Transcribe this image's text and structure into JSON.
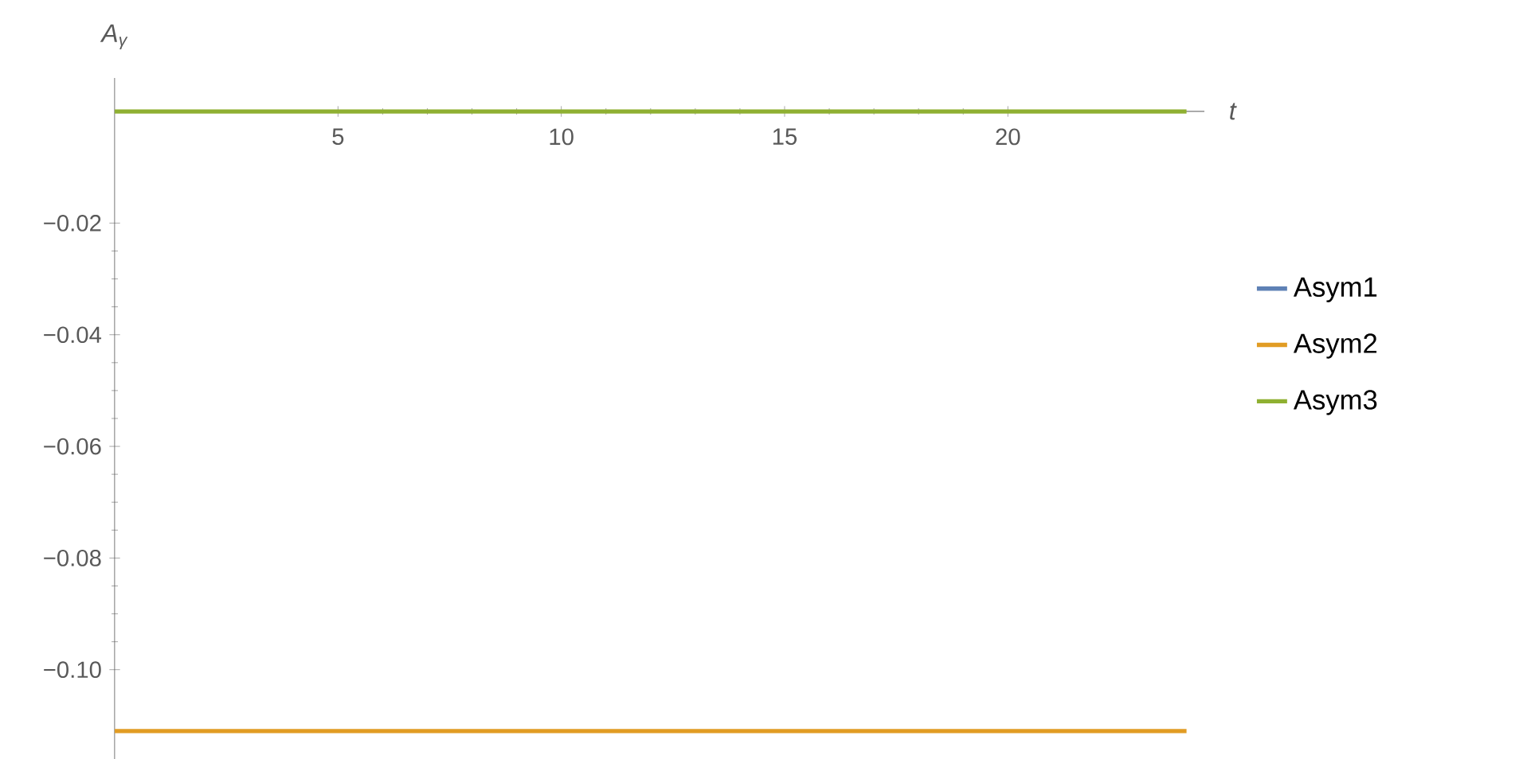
{
  "chart_data": {
    "type": "line",
    "xlabel": "t",
    "ylabel": "A$_{γ}$",
    "x": [
      0,
      24
    ],
    "series": [
      {
        "name": "Asym1",
        "color": "#5e81b5",
        "values": [
          null,
          null
        ]
      },
      {
        "name": "Asym2",
        "color": "#e19c24",
        "values": [
          -0.111,
          -0.111
        ]
      },
      {
        "name": "Asym3",
        "color": "#8fb032",
        "values": [
          0,
          0
        ]
      }
    ],
    "xlim": [
      0,
      24.4
    ],
    "ylim": [
      -0.116,
      0.006
    ],
    "xticks": [
      5,
      10,
      15,
      20
    ],
    "yticks": [
      {
        "value": -0.1,
        "label": "−0.10"
      },
      {
        "value": -0.08,
        "label": "−0.08"
      },
      {
        "value": -0.06,
        "label": "−0.06"
      },
      {
        "value": -0.04,
        "label": "−0.04"
      },
      {
        "value": -0.02,
        "label": "−0.02"
      }
    ],
    "legend": "right",
    "marker": "none",
    "line_style": "solid",
    "grid": false
  }
}
